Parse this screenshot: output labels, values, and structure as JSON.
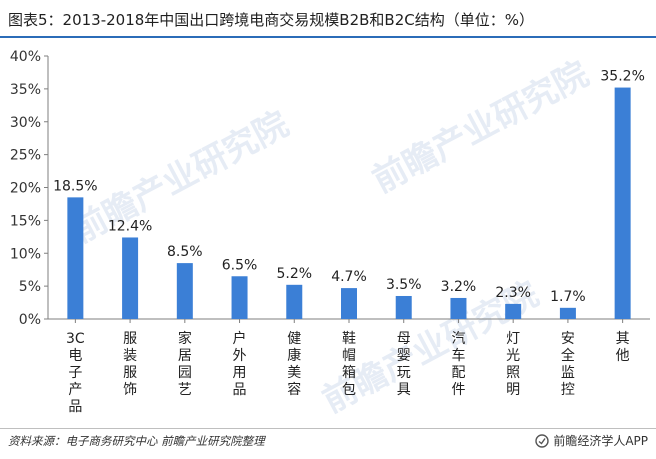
{
  "header": {
    "title": "图表5：2013-2018年中国出口跨境电商交易规模B2B和B2C结构（单位：%）"
  },
  "footer": {
    "source": "资料来源：电子商务研究中心 前瞻产业研究院整理",
    "brand": "前瞻经济学人APP"
  },
  "watermark": {
    "text": "前瞻产业研究院"
  },
  "colors": {
    "bar": "#3b7fd6",
    "axis": "#7f7f7f",
    "title_rule": "#2b6cb8"
  },
  "chart_data": {
    "type": "bar",
    "categories": [
      "3C电子产品",
      "服装服饰",
      "家居园艺",
      "户外用品",
      "健康美容",
      "鞋帽箱包",
      "母婴玩具",
      "汽车配件",
      "灯光照明",
      "安全监控",
      "其他"
    ],
    "values": [
      18.5,
      12.4,
      8.5,
      6.5,
      5.2,
      4.7,
      3.5,
      3.2,
      2.3,
      1.7,
      35.2
    ],
    "value_labels": [
      "18.5%",
      "12.4%",
      "8.5%",
      "6.5%",
      "5.2%",
      "4.7%",
      "3.5%",
      "3.2%",
      "2.3%",
      "1.7%",
      "35.2%"
    ],
    "yticks": [
      0,
      5,
      10,
      15,
      20,
      25,
      30,
      35,
      40
    ],
    "ytick_labels": [
      "0%",
      "5%",
      "10%",
      "15%",
      "20%",
      "25%",
      "30%",
      "35%",
      "40%"
    ],
    "ylim": [
      0,
      40
    ],
    "grid": false,
    "legend": "none"
  }
}
